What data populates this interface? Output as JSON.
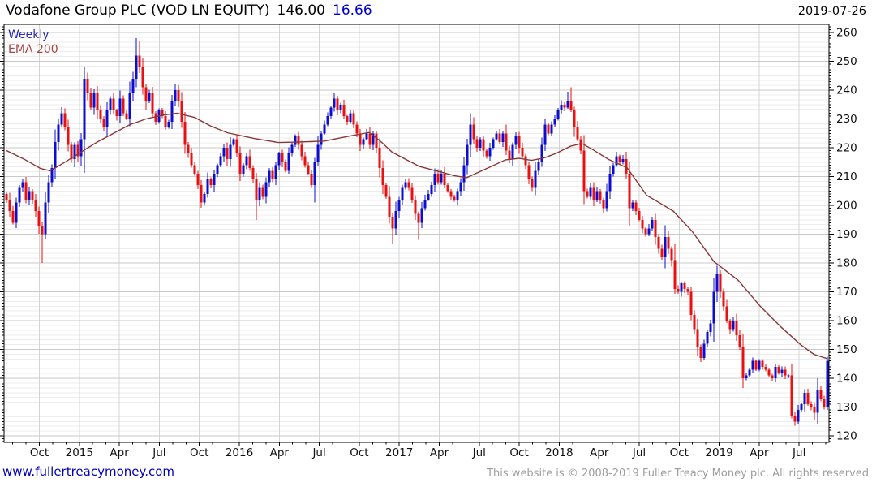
{
  "header": {
    "title": "Vodafone Group PLC (VOD LN EQUITY)",
    "price": "146.00",
    "change": "16.66",
    "date": "2019-07-26"
  },
  "legend": {
    "series": "Weekly",
    "overlay": "EMA 200"
  },
  "footer": {
    "url": "www.fullertreacymoney.com",
    "copyright": "This website is © 2008-2019 Fuller Treacy Money plc. All rights reserved"
  },
  "colors": {
    "up": "#0d0dcf",
    "down": "#e81010",
    "ema": "#8b3636",
    "grid_major": "#c9c9c9",
    "grid_minor": "#ededed",
    "axis": "#000000",
    "label": "#111111",
    "title_change": "#0000cc",
    "legend_weekly": "#2a2ab5",
    "legend_ema": "#a34545",
    "url": "#0000bb",
    "copyright": "#9d9d9d",
    "background": "#ffffff"
  },
  "chart_data": {
    "type": "candlestick",
    "interval": "Weekly",
    "overlay": "EMA 200",
    "instrument": "Vodafone Group PLC (VOD LN EQUITY)",
    "last_price": 146.0,
    "change": 16.66,
    "y_axis": {
      "min": 120,
      "max": 260,
      "tick_step": 10,
      "side": "right",
      "tick_labels": [
        260,
        250,
        240,
        230,
        220,
        210,
        200,
        190,
        180,
        170,
        160,
        150,
        140,
        130,
        120
      ]
    },
    "x_axis": {
      "tick_labels": [
        "Oct",
        "2015",
        "Apr",
        "Jul",
        "Oct",
        "2016",
        "Apr",
        "Jul",
        "Oct",
        "2017",
        "Apr",
        "Jul",
        "Oct",
        "2018",
        "Apr",
        "Jul",
        "Oct",
        "2019",
        "Apr",
        "Jul"
      ]
    },
    "first_open": 204,
    "weekly_closes": [
      202,
      198,
      194,
      201,
      206,
      208,
      202,
      205,
      202,
      198,
      193,
      190,
      201,
      208,
      213,
      222,
      228,
      232,
      227,
      221,
      216,
      221,
      217,
      223,
      244,
      239,
      234,
      239,
      233,
      230,
      227,
      233,
      237,
      233,
      231,
      237,
      232,
      230,
      239,
      244,
      252,
      248,
      241,
      236,
      239,
      232,
      229,
      233,
      231,
      227,
      229,
      236,
      240,
      236,
      229,
      221,
      218,
      214,
      211,
      207,
      201,
      204,
      209,
      207,
      211,
      214,
      217,
      220,
      216,
      221,
      223,
      218,
      211,
      214,
      217,
      213,
      209,
      202,
      206,
      203,
      208,
      212,
      209,
      214,
      218,
      215,
      212,
      218,
      221,
      224,
      221,
      217,
      214,
      211,
      207,
      215,
      221,
      225,
      228,
      231,
      234,
      237,
      233,
      235,
      231,
      229,
      232,
      228,
      225,
      221,
      223,
      225,
      221,
      225,
      220,
      213,
      207,
      203,
      196,
      192,
      198,
      202,
      206,
      208,
      206,
      202,
      197,
      194,
      199,
      202,
      204,
      207,
      211,
      208,
      211,
      207,
      205,
      203,
      202,
      205,
      208,
      214,
      221,
      228,
      223,
      220,
      223,
      219,
      217,
      220,
      223,
      225,
      222,
      225,
      219,
      216,
      221,
      224,
      220,
      217,
      214,
      209,
      206,
      212,
      215,
      221,
      228,
      225,
      228,
      230,
      233,
      235,
      234,
      236,
      233,
      227,
      223,
      219,
      205,
      203,
      206,
      202,
      205,
      202,
      199,
      205,
      211,
      214,
      217,
      215,
      216,
      211,
      199,
      201,
      198,
      195,
      192,
      190,
      192,
      195,
      189,
      185,
      182,
      189,
      185,
      181,
      171,
      170,
      173,
      171,
      170,
      162,
      157,
      151,
      147,
      152,
      156,
      159,
      170,
      176,
      170,
      165,
      160,
      157,
      160,
      155,
      151,
      140,
      141,
      143,
      146,
      143,
      146,
      144,
      143,
      141,
      140,
      144,
      142,
      143,
      141,
      141,
      127,
      125,
      129,
      131,
      135,
      131,
      130,
      128,
      136,
      133,
      130,
      146
    ],
    "wick_overrides": {
      "11": {
        "low": 180
      },
      "24": {
        "high": 248
      },
      "40": {
        "high": 258
      },
      "41": {
        "high": 257
      },
      "77": {
        "low": 195
      },
      "95": {
        "low": 201
      },
      "101": {
        "high": 239
      },
      "119": {
        "low": 186.5
      },
      "127": {
        "low": 188
      },
      "143": {
        "high": 232
      },
      "173": {
        "high": 239.5
      },
      "174": {
        "high": 241
      },
      "227": {
        "low": 136.6
      },
      "242": {
        "low": 126
      },
      "243": {
        "low": 123.5
      },
      "249": {
        "low": 125.4
      },
      "253": {
        "high": 147.5,
        "low": 129
      }
    },
    "ema_points": [
      [
        0,
        219
      ],
      [
        5.5,
        216
      ],
      [
        10.5,
        212.8
      ],
      [
        13.5,
        212
      ],
      [
        18,
        215
      ],
      [
        23,
        218.5
      ],
      [
        28,
        222
      ],
      [
        33,
        225
      ],
      [
        38,
        228
      ],
      [
        43,
        230
      ],
      [
        48,
        231.3
      ],
      [
        52.5,
        232
      ],
      [
        58,
        230.5
      ],
      [
        63,
        227.5
      ],
      [
        68,
        225.2
      ],
      [
        76.3,
        223.2
      ],
      [
        83.8,
        221.8
      ],
      [
        90.5,
        222
      ],
      [
        98,
        222.3
      ],
      [
        105.5,
        224
      ],
      [
        111.8,
        225.3
      ],
      [
        115.5,
        222
      ],
      [
        118.8,
        218.5
      ],
      [
        123,
        216
      ],
      [
        127.3,
        213.5
      ],
      [
        133,
        211.8
      ],
      [
        138,
        210.3
      ],
      [
        141.8,
        209.6
      ],
      [
        148,
        212.8
      ],
      [
        153.8,
        215.8
      ],
      [
        158,
        216.3
      ],
      [
        161.8,
        215.6
      ],
      [
        165.5,
        216.4
      ],
      [
        169.3,
        218
      ],
      [
        173.8,
        220.5
      ],
      [
        177.3,
        221.5
      ],
      [
        180.5,
        219.5
      ],
      [
        185.5,
        216
      ],
      [
        191.3,
        213
      ],
      [
        197.3,
        203.5
      ],
      [
        201.8,
        200.5
      ],
      [
        205.5,
        198
      ],
      [
        211.3,
        191
      ],
      [
        218,
        180.5
      ],
      [
        225.5,
        174
      ],
      [
        232.3,
        165
      ],
      [
        238.8,
        157.7
      ],
      [
        244.8,
        151.6
      ],
      [
        248.8,
        148.3
      ],
      [
        253,
        146.8
      ]
    ]
  }
}
